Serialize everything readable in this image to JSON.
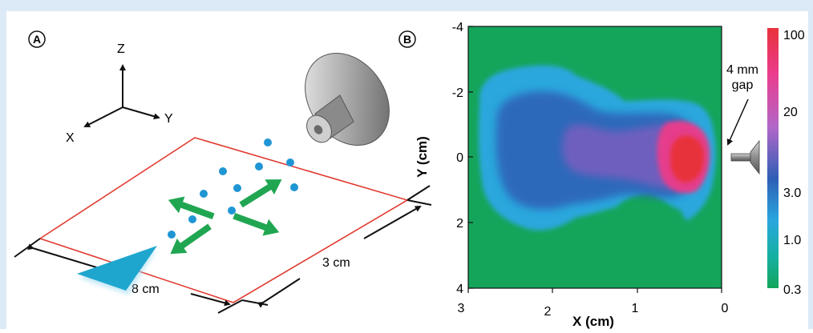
{
  "panel_a": {
    "label": "A",
    "axes": {
      "z": "Z",
      "y": "Y",
      "x": "X"
    },
    "dim_length": "8 cm",
    "dim_width": "3 cm"
  },
  "panel_b": {
    "label": "B",
    "gap_label_line1": "4 mm",
    "gap_label_line2": "gap",
    "colorbar": {
      "ticks": [
        "100",
        "20",
        "3.0",
        "1.0",
        "0.3"
      ],
      "colors": [
        "#e8333a",
        "#ea3d8f",
        "#b266c8",
        "#2e5fb5",
        "#29a7dd",
        "#15b0a0",
        "#14a55b"
      ]
    }
  },
  "chart_data": {
    "type": "heatmap",
    "xlabel": "X (cm)",
    "ylabel": "Y (cm)",
    "x_ticks": [
      "3",
      "2",
      "1",
      "0"
    ],
    "y_ticks": [
      "-4",
      "-2",
      "0",
      "2",
      "4"
    ],
    "xlim": [
      3,
      0
    ],
    "ylim": [
      -4,
      4
    ],
    "scale": "log",
    "background_color": "#14a55b"
  }
}
